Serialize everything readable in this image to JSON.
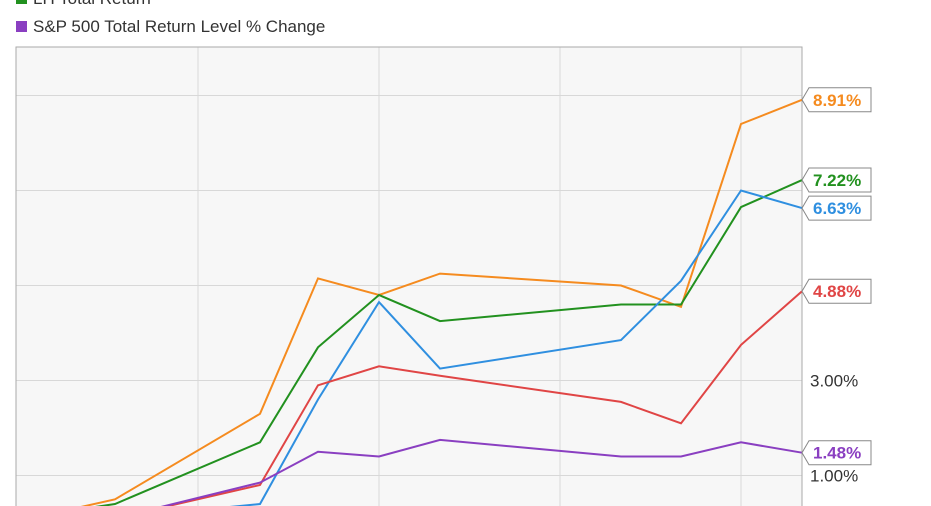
{
  "legend": [
    {
      "label": "LH Total Return",
      "color": "#22911f"
    },
    {
      "label": "S&P 500 Total Return Level % Change",
      "color": "#8a3fc1"
    }
  ],
  "chart_data": {
    "type": "line",
    "ylim": [
      0.0,
      10.0
    ],
    "y_ticks": [
      {
        "value": 1.0,
        "label": "1.00%"
      },
      {
        "value": 3.0,
        "label": "3.00%"
      }
    ],
    "gridlines_y": [
      1.0,
      3.0,
      5.0,
      7.0,
      9.0
    ],
    "x_divisions": 7,
    "grid": true,
    "series": [
      {
        "color": "#f58b1f",
        "end_label": "8.91%",
        "values": [
          0.2,
          0.5,
          2.3,
          5.15,
          4.8,
          5.25,
          5.0,
          4.55,
          8.4,
          8.91
        ]
      },
      {
        "name": "LH Total Return",
        "color": "#22911f",
        "end_label": "7.22%",
        "values": [
          0.2,
          0.4,
          1.7,
          3.7,
          4.8,
          4.25,
          4.6,
          4.6,
          6.65,
          7.22
        ]
      },
      {
        "color": "#2f8fe0",
        "end_label": "6.63%",
        "values": [
          0.2,
          0.1,
          0.4,
          2.6,
          4.65,
          3.25,
          3.85,
          5.1,
          7.0,
          6.63
        ]
      },
      {
        "color": "#e04545",
        "end_label": "4.88%",
        "values": [
          0.2,
          0.1,
          0.8,
          2.9,
          3.3,
          3.1,
          2.55,
          2.1,
          3.75,
          4.88
        ]
      },
      {
        "name": "S&P 500 Total Return Level % Change",
        "color": "#8a3fc1",
        "end_label": "1.48%",
        "values": [
          0.2,
          0.1,
          0.85,
          1.5,
          1.4,
          1.75,
          1.4,
          1.4,
          1.7,
          1.48
        ]
      }
    ]
  }
}
